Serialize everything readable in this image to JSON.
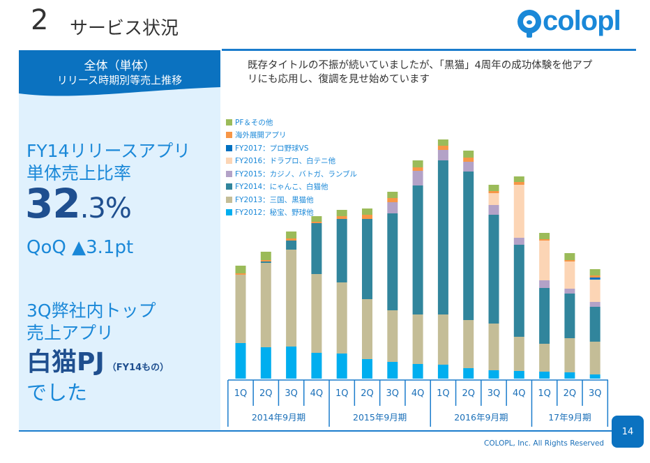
{
  "header": {
    "section_number": "2",
    "section_title": "サービス状況",
    "logo_text": "colopl"
  },
  "left_panel": {
    "header_line1": "全体（単体）",
    "header_line2": "リリース時期別等売上推移",
    "metric_label_line1": "FY14リリースアプリ",
    "metric_label_line2": "単体売上比率",
    "metric_value_int": "32",
    "metric_value_dec": ".3%",
    "qoq_label": "QoQ ▲3.1pt",
    "top_app_line1": "3Q弊社内トップ",
    "top_app_line2": "売上アプリ",
    "top_app_name": "白猫PJ",
    "top_app_note": "（FY14もの）",
    "top_app_line4": "でした"
  },
  "description": {
    "line1": "既存タイトルの不振が続いていましたが、「黒猫」4周年の成功体験を他アプ",
    "line2": "リにも応用し、復調を見せ始めています"
  },
  "footer": {
    "page_number": "14",
    "copyright": "COLOPL, Inc. All Rights Reserved"
  },
  "chart_data": {
    "type": "bar",
    "stacked": true,
    "title": "",
    "xlabel": "",
    "ylabel": "",
    "y_axis_shown": false,
    "grid": false,
    "legend_position": "top-left",
    "note": "No y-axis scale shown; values are relative index units estimated from bar heights.",
    "categories": [
      "1Q",
      "2Q",
      "3Q",
      "4Q",
      "1Q",
      "2Q",
      "3Q",
      "4Q",
      "1Q",
      "2Q",
      "3Q",
      "4Q",
      "1Q",
      "2Q",
      "3Q"
    ],
    "category_groups": [
      {
        "label": "2014年9月期",
        "count": 4
      },
      {
        "label": "2015年9月期",
        "count": 4
      },
      {
        "label": "2016年9月期",
        "count": 4
      },
      {
        "label": "17年9月期",
        "count": 3
      }
    ],
    "series": [
      {
        "name": "FY2012：秘宝、野球他",
        "color": "#00aeef",
        "values": [
          51,
          45,
          46,
          37,
          36,
          28,
          24,
          21,
          20,
          15,
          12,
          11,
          10,
          9,
          6
        ]
      },
      {
        "name": "FY2013：三国、黒猫他",
        "color": "#c4bd97",
        "values": [
          98,
          121,
          139,
          113,
          102,
          86,
          74,
          71,
          72,
          69,
          67,
          49,
          40,
          49,
          47
        ]
      },
      {
        "name": "FY2014：にゃんこ、白猫他",
        "color": "#31859c",
        "values": [
          0,
          2,
          13,
          73,
          91,
          115,
          139,
          185,
          221,
          213,
          156,
          132,
          80,
          64,
          50
        ]
      },
      {
        "name": "FY2015：カジノ、バトガ、ランブル",
        "color": "#b3a2c7",
        "values": [
          0,
          0,
          0,
          0,
          0,
          0,
          16,
          21,
          15,
          14,
          14,
          10,
          11,
          7,
          7
        ]
      },
      {
        "name": "FY2016：ドラプロ、白テニ他",
        "color": "#fcd5b5",
        "values": [
          0,
          0,
          0,
          0,
          0,
          0,
          0,
          0,
          0,
          0,
          17,
          76,
          57,
          39,
          32
        ]
      },
      {
        "name": "FY2017：プロ野球VS",
        "color": "#0070c0",
        "values": [
          0,
          0,
          0,
          0,
          0,
          0,
          0,
          0,
          0,
          0,
          0,
          0,
          0,
          0,
          3
        ]
      },
      {
        "name": "海外展開アプリ",
        "color": "#f79646",
        "values": [
          2,
          2,
          3,
          2,
          4,
          6,
          6,
          5,
          6,
          6,
          3,
          4,
          2,
          2,
          3
        ]
      },
      {
        "name": "PF＆その他",
        "color": "#9bbb59",
        "values": [
          11,
          12,
          10,
          8,
          9,
          9,
          9,
          10,
          9,
          10,
          9,
          8,
          9,
          10,
          9
        ]
      }
    ],
    "legend_order": [
      "PF＆その他",
      "海外展開アプリ",
      "FY2017：プロ野球VS",
      "FY2016：ドラプロ、白テニ他",
      "FY2015：カジノ、バトガ、ランブル",
      "FY2014：にゃんこ、白猫他",
      "FY2013：三国、黒猫他",
      "FY2012：秘宝、野球他"
    ]
  }
}
